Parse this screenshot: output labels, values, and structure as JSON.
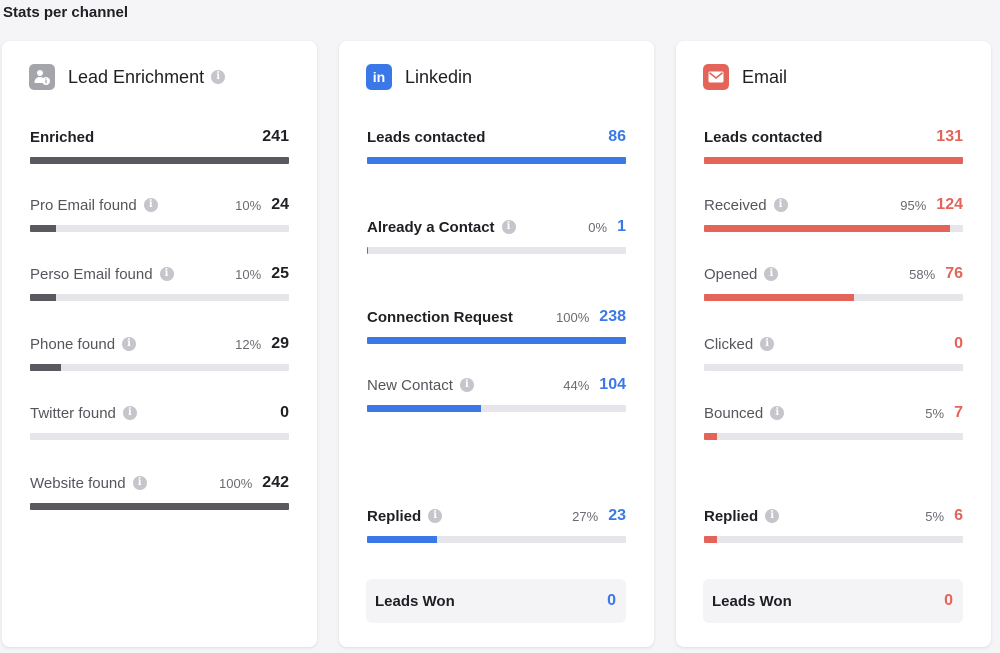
{
  "page_title": "Stats per channel",
  "colors": {
    "enrichment": "#5a595f",
    "linkedin": "#3b78e7",
    "email": "#e4645a",
    "track": "#e5e5ea"
  },
  "icons": {
    "info": "i",
    "enrichment_logo": "user-info-icon",
    "linkedin_logo": "linkedin-icon",
    "email_logo": "mail-icon"
  },
  "enrichment": {
    "title": "Lead Enrichment",
    "metrics": [
      {
        "label": "Enriched",
        "pct": "",
        "value": "241",
        "fill": 1.0
      },
      {
        "label": "Pro Email found",
        "pct": "10%",
        "value": "24",
        "fill": 0.1
      },
      {
        "label": "Perso Email found",
        "pct": "10%",
        "value": "25",
        "fill": 0.1
      },
      {
        "label": "Phone found",
        "pct": "12%",
        "value": "29",
        "fill": 0.12
      },
      {
        "label": "Twitter found",
        "pct": "",
        "value": "0",
        "fill": 0
      },
      {
        "label": "Website found",
        "pct": "100%",
        "value": "242",
        "fill": 1.0
      }
    ]
  },
  "linkedin": {
    "title": "Linkedin",
    "metrics": [
      {
        "label": "Leads contacted",
        "pct": "",
        "value": "86",
        "fill": 1.0
      },
      {
        "label": "Already a Contact",
        "pct": "0%",
        "value": "1",
        "fill": 0.004
      },
      {
        "label": "Connection Request",
        "pct": "100%",
        "value": "238",
        "fill": 1.0
      },
      {
        "label": "New Contact",
        "pct": "44%",
        "value": "104",
        "fill": 0.44
      },
      {
        "label": "Replied",
        "pct": "27%",
        "value": "23",
        "fill": 0.27
      }
    ],
    "won_label": "Leads Won",
    "won_value": "0"
  },
  "email": {
    "title": "Email",
    "metrics": [
      {
        "label": "Leads contacted",
        "pct": "",
        "value": "131",
        "fill": 1.0
      },
      {
        "label": "Received",
        "pct": "95%",
        "value": "124",
        "fill": 0.95
      },
      {
        "label": "Opened",
        "pct": "58%",
        "value": "76",
        "fill": 0.58
      },
      {
        "label": "Clicked",
        "pct": "",
        "value": "0",
        "fill": 0
      },
      {
        "label": "Bounced",
        "pct": "5%",
        "value": "7",
        "fill": 0.05
      },
      {
        "label": "Replied",
        "pct": "5%",
        "value": "6",
        "fill": 0.05
      }
    ],
    "won_label": "Leads Won",
    "won_value": "0"
  }
}
